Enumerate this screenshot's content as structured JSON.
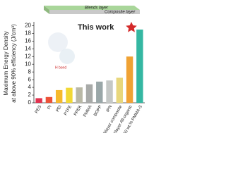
{
  "chart_data": {
    "type": "bar",
    "ylabel": [
      "Maximum Energy Density",
      "at above 90% efficiency (J/cm³)"
    ],
    "categories": [
      "PES",
      "PI",
      "PEI",
      "PTFE",
      "PPEK",
      "PMMA",
      "BOPP",
      "IPN",
      "Bilayer composite",
      "Trilayer All-organic",
      "50 wt.% PMMA-S"
    ],
    "values": [
      1.2,
      1.5,
      3.3,
      3.9,
      4.0,
      4.8,
      5.5,
      5.8,
      6.5,
      12.0,
      19.0
    ],
    "colors": [
      "#e2324f",
      "#ec5238",
      "#f6b92c",
      "#f2d834",
      "#b9b8a6",
      "#a8aaa8",
      "#9aa7a8",
      "#c5c8c6",
      "#e8d77c",
      "#f0a234",
      "#35b7a2"
    ],
    "ylim": [
      0,
      21
    ],
    "yticks": [
      0,
      2,
      4,
      6,
      8,
      10,
      12,
      14,
      16,
      18,
      20
    ],
    "annotations": [
      "This work",
      "Blends layer",
      "Composite layer",
      "H bond"
    ]
  }
}
